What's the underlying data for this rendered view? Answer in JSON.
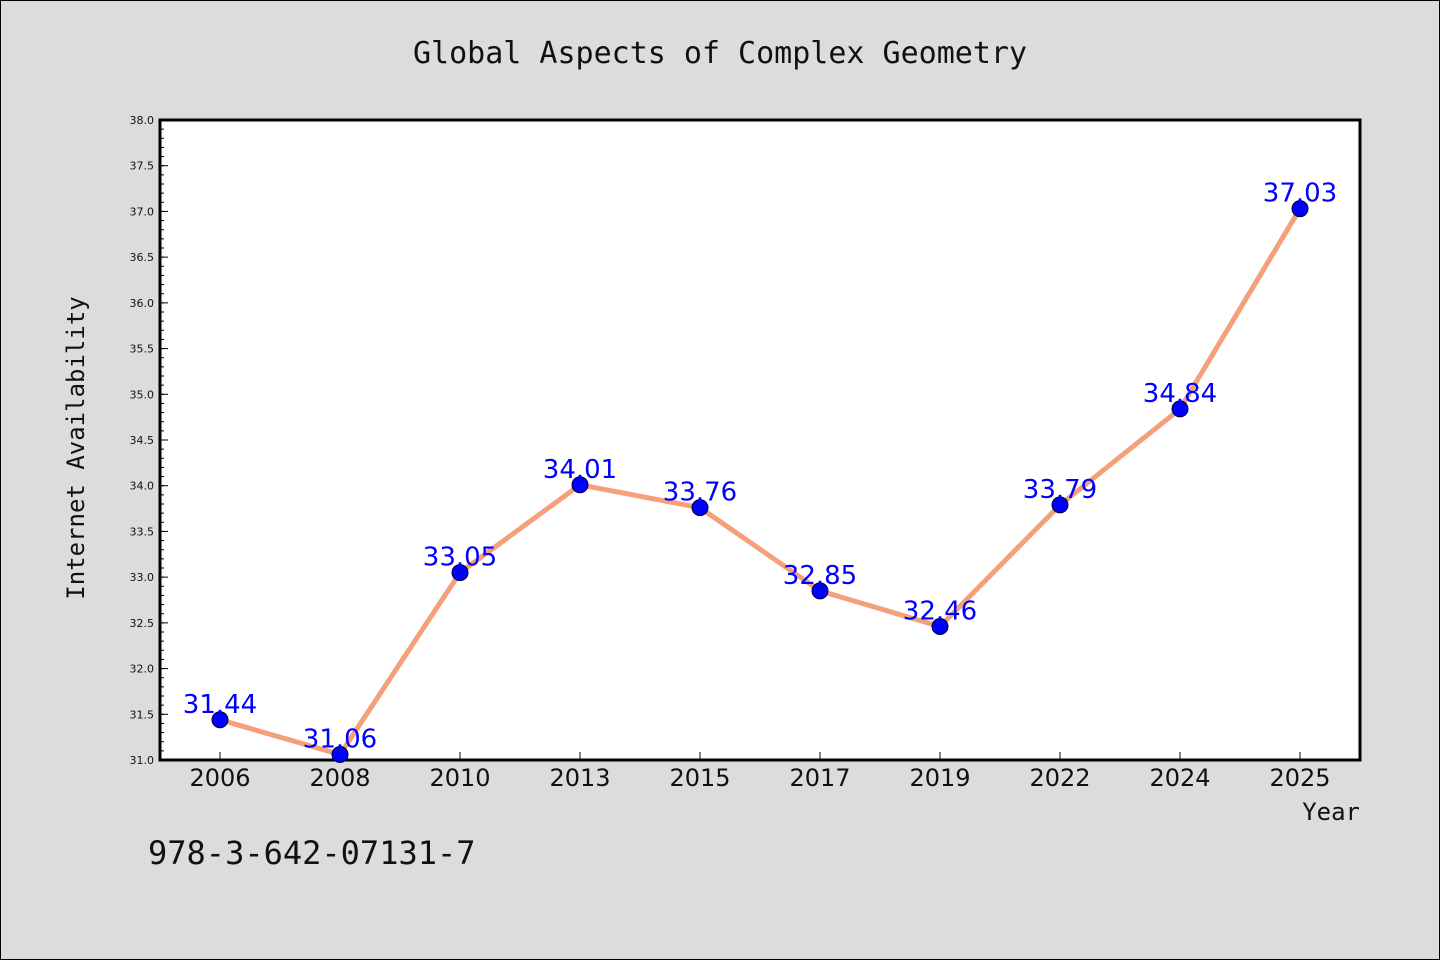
{
  "chart_data": {
    "type": "line",
    "title": "Global Aspects of Complex Geometry",
    "xlabel": "Year",
    "ylabel": "Internet Availability",
    "categories": [
      "2006",
      "2008",
      "2010",
      "2013",
      "2015",
      "2017",
      "2019",
      "2022",
      "2024",
      "2025"
    ],
    "values": [
      31.44,
      31.06,
      33.05,
      34.01,
      33.76,
      32.85,
      32.46,
      33.79,
      34.84,
      37.03
    ],
    "data_labels": [
      "31.44",
      "31.06",
      "33.05",
      "34.01",
      "33.76",
      "32.85",
      "32.46",
      "33.79",
      "34.84",
      "37.03"
    ],
    "ylim": [
      31.0,
      38.0
    ],
    "yticks": [
      "31.0",
      "31.5",
      "32.0",
      "32.5",
      "33.0",
      "33.5",
      "34.0",
      "34.5",
      "35.0",
      "35.5",
      "36.0",
      "36.5",
      "37.0",
      "37.5",
      "38.0"
    ],
    "grid": false,
    "line_color": "#f4a07a",
    "marker_color": "#0000ff",
    "label_color": "#0000ff",
    "background": "#dcdcdc",
    "plot_background": "#ffffff"
  },
  "footnote": "978-3-642-07131-7"
}
